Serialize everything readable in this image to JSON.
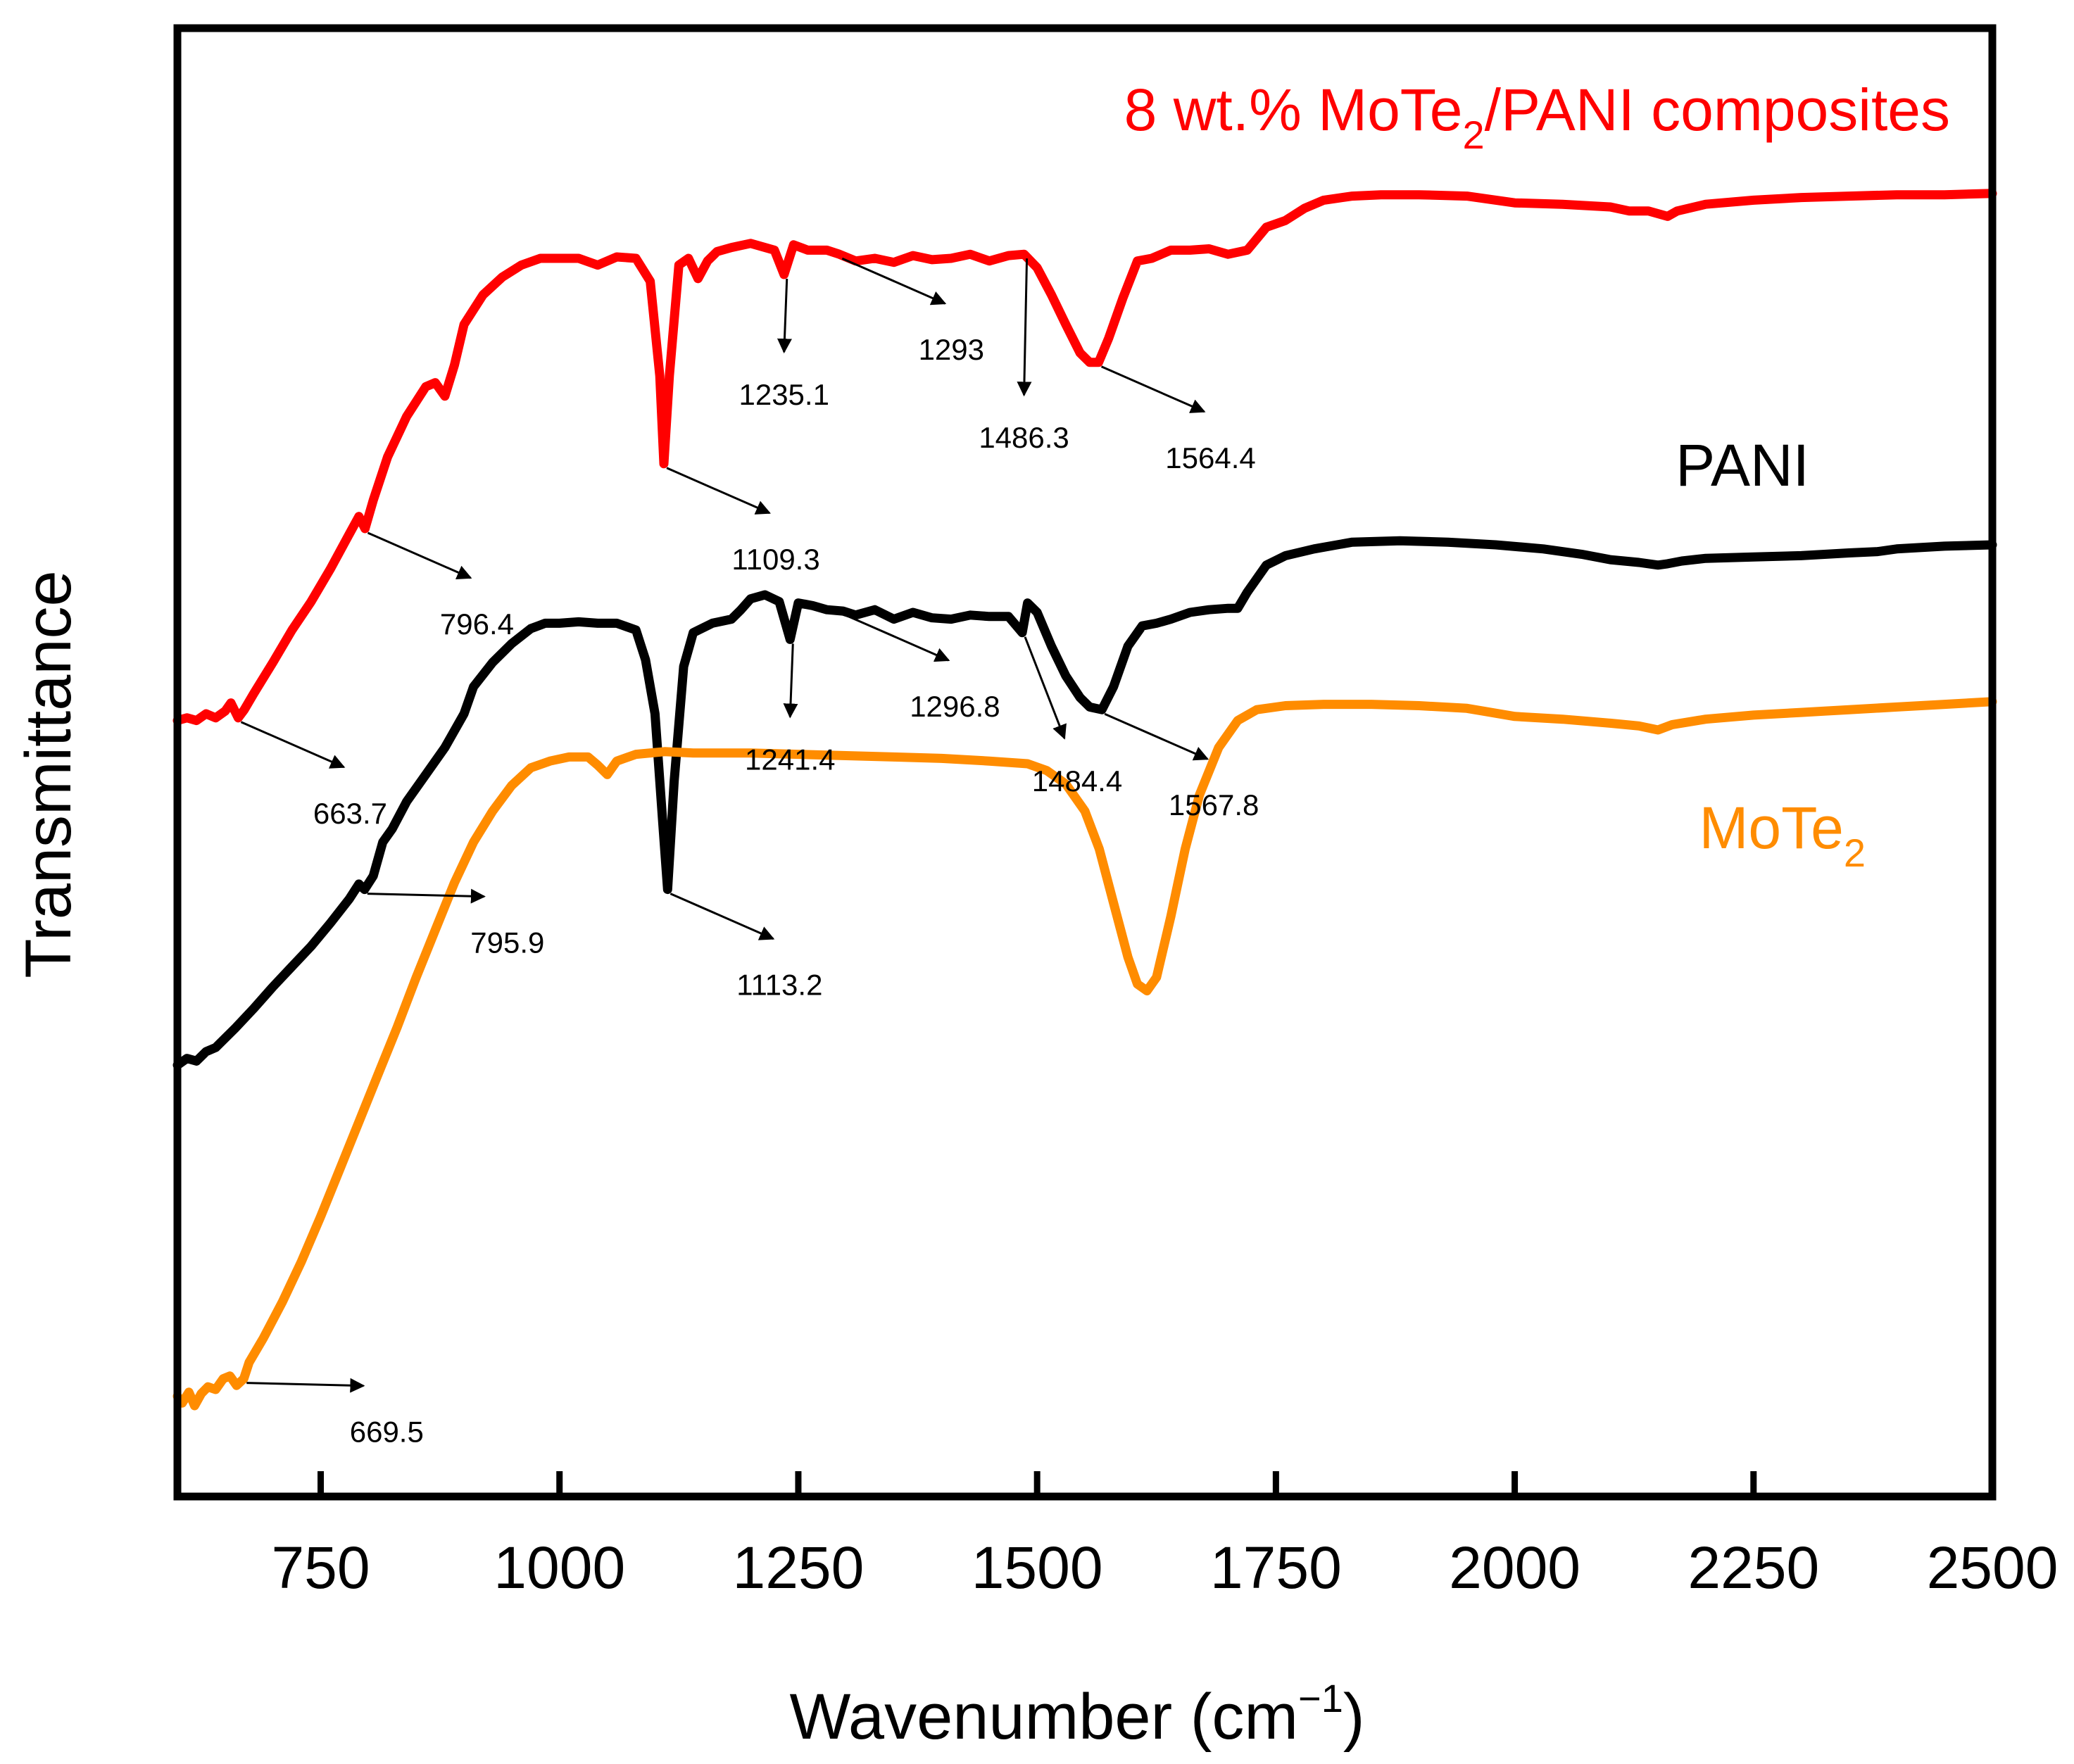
{
  "chart_data": {
    "type": "line",
    "xlabel": "Wavenumber (cm",
    "xlabel_sup": "−1",
    "xlabel_close": ")",
    "ylabel": "Transmittance",
    "xlim": [
      600,
      2500
    ],
    "ylim": [
      0,
      1
    ],
    "x_ticks": [
      750,
      1000,
      1250,
      1500,
      1750,
      2000,
      2250,
      2500
    ],
    "x_tick_labels": [
      "750",
      "1000",
      "1250",
      "1500",
      "1750",
      "2000",
      "2250",
      "2500"
    ],
    "yticks_shown": false,
    "series": [
      {
        "id": "composite",
        "name_main": "8 wt.% MoTe",
        "name_sub": "2",
        "name_rest": "/PANI composites",
        "color": "#ff0000",
        "points": [
          [
            600,
            0.545
          ],
          [
            610,
            0.547
          ],
          [
            620,
            0.545
          ],
          [
            630,
            0.55
          ],
          [
            640,
            0.547
          ],
          [
            650,
            0.552
          ],
          [
            656,
            0.558
          ],
          [
            663.7,
            0.547
          ],
          [
            670,
            0.553
          ],
          [
            680,
            0.565
          ],
          [
            700,
            0.588
          ],
          [
            720,
            0.612
          ],
          [
            740,
            0.633
          ],
          [
            760,
            0.657
          ],
          [
            780,
            0.683
          ],
          [
            790,
            0.696
          ],
          [
            796.4,
            0.687
          ],
          [
            805,
            0.708
          ],
          [
            820,
            0.74
          ],
          [
            840,
            0.77
          ],
          [
            860,
            0.792
          ],
          [
            870,
            0.795
          ],
          [
            880,
            0.785
          ],
          [
            890,
            0.808
          ],
          [
            900,
            0.838
          ],
          [
            920,
            0.86
          ],
          [
            940,
            0.873
          ],
          [
            960,
            0.882
          ],
          [
            980,
            0.887
          ],
          [
            1000,
            0.887
          ],
          [
            1020,
            0.887
          ],
          [
            1040,
            0.882
          ],
          [
            1060,
            0.888
          ],
          [
            1080,
            0.887
          ],
          [
            1095,
            0.87
          ],
          [
            1105,
            0.8
          ],
          [
            1109.3,
            0.735
          ],
          [
            1115,
            0.8
          ],
          [
            1125,
            0.882
          ],
          [
            1135,
            0.887
          ],
          [
            1145,
            0.872
          ],
          [
            1155,
            0.885
          ],
          [
            1165,
            0.892
          ],
          [
            1180,
            0.895
          ],
          [
            1200,
            0.898
          ],
          [
            1225,
            0.893
          ],
          [
            1235.1,
            0.875
          ],
          [
            1245,
            0.897
          ],
          [
            1260,
            0.893
          ],
          [
            1280,
            0.893
          ],
          [
            1293,
            0.89
          ],
          [
            1310,
            0.885
          ],
          [
            1330,
            0.887
          ],
          [
            1350,
            0.884
          ],
          [
            1370,
            0.889
          ],
          [
            1390,
            0.886
          ],
          [
            1410,
            0.887
          ],
          [
            1430,
            0.89
          ],
          [
            1450,
            0.885
          ],
          [
            1470,
            0.889
          ],
          [
            1486.3,
            0.89
          ],
          [
            1500,
            0.88
          ],
          [
            1515,
            0.86
          ],
          [
            1530,
            0.838
          ],
          [
            1545,
            0.817
          ],
          [
            1555,
            0.81
          ],
          [
            1564.4,
            0.81
          ],
          [
            1575,
            0.828
          ],
          [
            1590,
            0.858
          ],
          [
            1605,
            0.885
          ],
          [
            1620,
            0.887
          ],
          [
            1640,
            0.893
          ],
          [
            1660,
            0.893
          ],
          [
            1680,
            0.894
          ],
          [
            1700,
            0.89
          ],
          [
            1720,
            0.893
          ],
          [
            1740,
            0.91
          ],
          [
            1760,
            0.915
          ],
          [
            1780,
            0.924
          ],
          [
            1800,
            0.93
          ],
          [
            1830,
            0.933
          ],
          [
            1860,
            0.934
          ],
          [
            1900,
            0.934
          ],
          [
            1950,
            0.933
          ],
          [
            2000,
            0.928
          ],
          [
            2050,
            0.927
          ],
          [
            2100,
            0.925
          ],
          [
            2120,
            0.922
          ],
          [
            2140,
            0.922
          ],
          [
            2160,
            0.918
          ],
          [
            2170,
            0.922
          ],
          [
            2200,
            0.927
          ],
          [
            2250,
            0.93
          ],
          [
            2300,
            0.932
          ],
          [
            2350,
            0.933
          ],
          [
            2400,
            0.934
          ],
          [
            2450,
            0.934
          ],
          [
            2500,
            0.935
          ]
        ]
      },
      {
        "id": "pani",
        "name": "PANI",
        "color": "#000000",
        "points": [
          [
            600,
            0.29
          ],
          [
            610,
            0.295
          ],
          [
            620,
            0.293
          ],
          [
            630,
            0.3
          ],
          [
            640,
            0.303
          ],
          [
            660,
            0.317
          ],
          [
            680,
            0.332
          ],
          [
            700,
            0.348
          ],
          [
            720,
            0.363
          ],
          [
            740,
            0.378
          ],
          [
            760,
            0.395
          ],
          [
            780,
            0.413
          ],
          [
            790,
            0.424
          ],
          [
            795.9,
            0.42
          ],
          [
            805,
            0.43
          ],
          [
            815,
            0.455
          ],
          [
            825,
            0.465
          ],
          [
            840,
            0.485
          ],
          [
            860,
            0.505
          ],
          [
            880,
            0.525
          ],
          [
            900,
            0.55
          ],
          [
            910,
            0.57
          ],
          [
            930,
            0.588
          ],
          [
            950,
            0.602
          ],
          [
            970,
            0.613
          ],
          [
            985,
            0.617
          ],
          [
            1000,
            0.617
          ],
          [
            1020,
            0.618
          ],
          [
            1040,
            0.617
          ],
          [
            1060,
            0.617
          ],
          [
            1080,
            0.612
          ],
          [
            1090,
            0.59
          ],
          [
            1100,
            0.55
          ],
          [
            1108,
            0.47
          ],
          [
            1113.2,
            0.42
          ],
          [
            1120,
            0.5
          ],
          [
            1130,
            0.585
          ],
          [
            1140,
            0.61
          ],
          [
            1160,
            0.617
          ],
          [
            1180,
            0.62
          ],
          [
            1190,
            0.627
          ],
          [
            1200,
            0.635
          ],
          [
            1215,
            0.638
          ],
          [
            1230,
            0.633
          ],
          [
            1241.4,
            0.605
          ],
          [
            1250,
            0.632
          ],
          [
            1265,
            0.63
          ],
          [
            1280,
            0.627
          ],
          [
            1296.8,
            0.626
          ],
          [
            1310,
            0.623
          ],
          [
            1330,
            0.627
          ],
          [
            1350,
            0.62
          ],
          [
            1370,
            0.625
          ],
          [
            1390,
            0.621
          ],
          [
            1410,
            0.62
          ],
          [
            1430,
            0.623
          ],
          [
            1450,
            0.622
          ],
          [
            1470,
            0.622
          ],
          [
            1484.4,
            0.61
          ],
          [
            1490,
            0.632
          ],
          [
            1500,
            0.625
          ],
          [
            1515,
            0.6
          ],
          [
            1530,
            0.578
          ],
          [
            1545,
            0.562
          ],
          [
            1555,
            0.555
          ],
          [
            1567.8,
            0.553
          ],
          [
            1580,
            0.57
          ],
          [
            1595,
            0.6
          ],
          [
            1610,
            0.615
          ],
          [
            1625,
            0.617
          ],
          [
            1640,
            0.62
          ],
          [
            1660,
            0.625
          ],
          [
            1680,
            0.627
          ],
          [
            1700,
            0.628
          ],
          [
            1710,
            0.628
          ],
          [
            1720,
            0.64
          ],
          [
            1740,
            0.66
          ],
          [
            1760,
            0.667
          ],
          [
            1790,
            0.672
          ],
          [
            1830,
            0.677
          ],
          [
            1880,
            0.678
          ],
          [
            1930,
            0.677
          ],
          [
            1980,
            0.675
          ],
          [
            2030,
            0.672
          ],
          [
            2070,
            0.668
          ],
          [
            2100,
            0.664
          ],
          [
            2130,
            0.662
          ],
          [
            2150,
            0.66
          ],
          [
            2160,
            0.661
          ],
          [
            2175,
            0.663
          ],
          [
            2200,
            0.665
          ],
          [
            2250,
            0.666
          ],
          [
            2300,
            0.667
          ],
          [
            2350,
            0.669
          ],
          [
            2380,
            0.67
          ],
          [
            2400,
            0.672
          ],
          [
            2450,
            0.674
          ],
          [
            2500,
            0.675
          ]
        ]
      },
      {
        "id": "mote2",
        "name_main": "MoTe",
        "name_sub": "2",
        "color": "#ff8c00",
        "points": [
          [
            600,
            0.045
          ],
          [
            605,
            0.04
          ],
          [
            612,
            0.048
          ],
          [
            618,
            0.038
          ],
          [
            625,
            0.047
          ],
          [
            632,
            0.052
          ],
          [
            640,
            0.05
          ],
          [
            648,
            0.058
          ],
          [
            655,
            0.06
          ],
          [
            662,
            0.053
          ],
          [
            669.5,
            0.058
          ],
          [
            675,
            0.07
          ],
          [
            690,
            0.088
          ],
          [
            710,
            0.115
          ],
          [
            730,
            0.145
          ],
          [
            750,
            0.178
          ],
          [
            770,
            0.213
          ],
          [
            790,
            0.248
          ],
          [
            810,
            0.283
          ],
          [
            830,
            0.318
          ],
          [
            850,
            0.355
          ],
          [
            870,
            0.39
          ],
          [
            890,
            0.425
          ],
          [
            910,
            0.455
          ],
          [
            930,
            0.478
          ],
          [
            950,
            0.497
          ],
          [
            970,
            0.51
          ],
          [
            990,
            0.515
          ],
          [
            1010,
            0.518
          ],
          [
            1030,
            0.518
          ],
          [
            1040,
            0.512
          ],
          [
            1050,
            0.505
          ],
          [
            1060,
            0.515
          ],
          [
            1080,
            0.52
          ],
          [
            1110,
            0.522
          ],
          [
            1140,
            0.521
          ],
          [
            1170,
            0.521
          ],
          [
            1200,
            0.521
          ],
          [
            1250,
            0.52
          ],
          [
            1300,
            0.519
          ],
          [
            1350,
            0.518
          ],
          [
            1400,
            0.517
          ],
          [
            1450,
            0.515
          ],
          [
            1490,
            0.513
          ],
          [
            1510,
            0.508
          ],
          [
            1530,
            0.498
          ],
          [
            1550,
            0.478
          ],
          [
            1565,
            0.45
          ],
          [
            1580,
            0.41
          ],
          [
            1595,
            0.37
          ],
          [
            1605,
            0.35
          ],
          [
            1615,
            0.345
          ],
          [
            1625,
            0.355
          ],
          [
            1640,
            0.4
          ],
          [
            1655,
            0.45
          ],
          [
            1670,
            0.49
          ],
          [
            1690,
            0.525
          ],
          [
            1710,
            0.545
          ],
          [
            1730,
            0.553
          ],
          [
            1760,
            0.556
          ],
          [
            1800,
            0.557
          ],
          [
            1850,
            0.557
          ],
          [
            1900,
            0.556
          ],
          [
            1950,
            0.554
          ],
          [
            2000,
            0.548
          ],
          [
            2050,
            0.546
          ],
          [
            2100,
            0.543
          ],
          [
            2130,
            0.541
          ],
          [
            2150,
            0.538
          ],
          [
            2165,
            0.542
          ],
          [
            2200,
            0.546
          ],
          [
            2250,
            0.549
          ],
          [
            2300,
            0.551
          ],
          [
            2350,
            0.553
          ],
          [
            2400,
            0.555
          ],
          [
            2450,
            0.557
          ],
          [
            2500,
            0.559
          ]
        ]
      }
    ],
    "annotations": [
      {
        "series": "composite",
        "label": "663.7",
        "x": 663.7,
        "dir": "right-down"
      },
      {
        "series": "composite",
        "label": "796.4",
        "x": 796.4,
        "dir": "right-down"
      },
      {
        "series": "composite",
        "label": "1109.3",
        "x": 1109.3,
        "dir": "right-down"
      },
      {
        "series": "composite",
        "label": "1235.1",
        "x": 1235.1,
        "dir": "down"
      },
      {
        "series": "composite",
        "label": "1293",
        "x": 1293,
        "dir": "right-down"
      },
      {
        "series": "composite",
        "label": "1486.3",
        "x": 1486.3,
        "dir": "down-long"
      },
      {
        "series": "composite",
        "label": "1564.4",
        "x": 1564.4,
        "dir": "right-down"
      },
      {
        "series": "pani",
        "label": "795.9",
        "x": 795.9,
        "dir": "right"
      },
      {
        "series": "pani",
        "label": "1113.2",
        "x": 1113.2,
        "dir": "right-down"
      },
      {
        "series": "pani",
        "label": "1241.4",
        "x": 1241.4,
        "dir": "down"
      },
      {
        "series": "pani",
        "label": "1296.8",
        "x": 1296.8,
        "dir": "right-down"
      },
      {
        "series": "pani",
        "label": "1484.4",
        "x": 1484.4,
        "dir": "down-right-steep"
      },
      {
        "series": "pani",
        "label": "1567.8",
        "x": 1567.8,
        "dir": "right-down"
      },
      {
        "series": "mote2",
        "label": "669.5",
        "x": 669.5,
        "dir": "right"
      }
    ]
  }
}
